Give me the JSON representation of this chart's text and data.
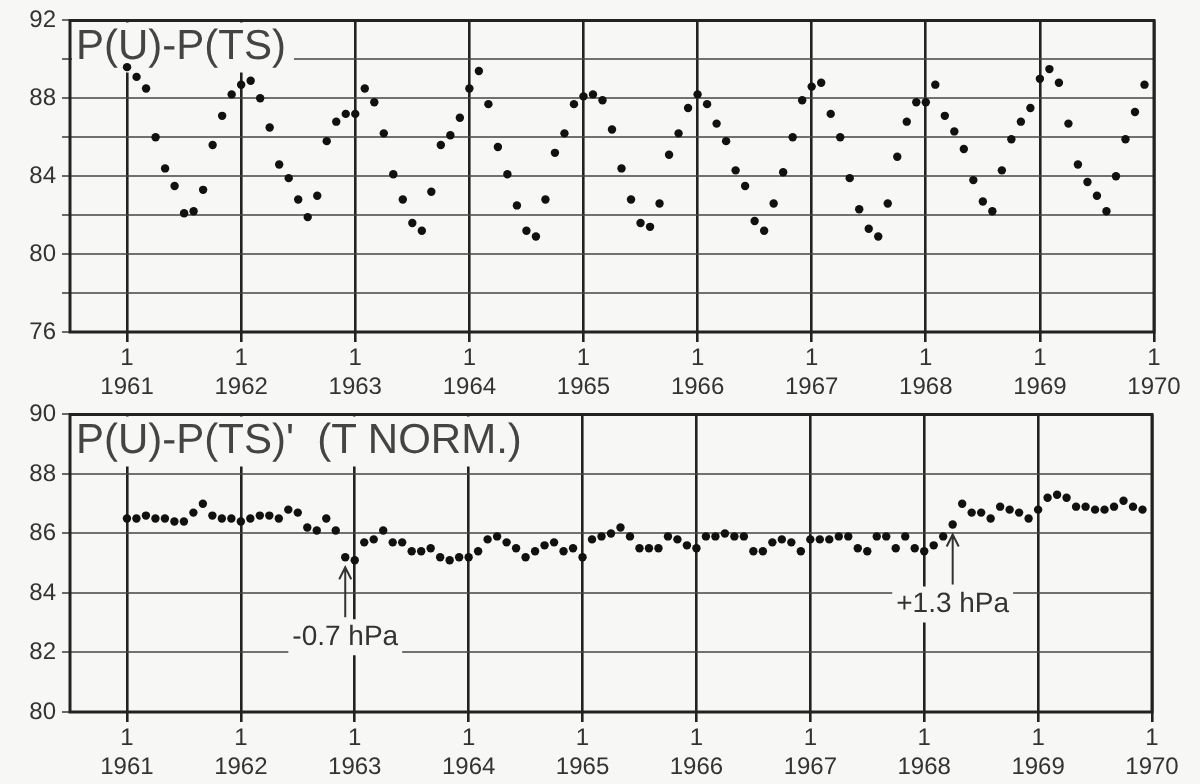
{
  "chart_data": [
    {
      "type": "scatter",
      "title": "P(U)-P(TS)",
      "marker": "circle",
      "grid": true,
      "legend": false,
      "xlim": [
        "1960-07",
        "1970-01"
      ],
      "xticks": [
        {
          "value": "1961-01",
          "label": "1\n1961"
        },
        {
          "value": "1962-01",
          "label": "1\n1962"
        },
        {
          "value": "1963-01",
          "label": "1\n1963"
        },
        {
          "value": "1964-01",
          "label": "1\n1964"
        },
        {
          "value": "1965-01",
          "label": "1\n1965"
        },
        {
          "value": "1966-01",
          "label": "1\n1966"
        },
        {
          "value": "1967-01",
          "label": "1\n1967"
        },
        {
          "value": "1968-01",
          "label": "1\n1968"
        },
        {
          "value": "1969-01",
          "label": "1\n1969"
        },
        {
          "value": "1970-01",
          "label": "1\n1970"
        }
      ],
      "ylim": [
        76,
        92
      ],
      "yticks": [
        76,
        {
          "value": 78,
          "label": null
        },
        80,
        {
          "value": 82,
          "label": null
        },
        84,
        {
          "value": 86,
          "label": null
        },
        88,
        {
          "value": 90,
          "label": null
        },
        92
      ],
      "x": [
        "1961-01",
        "1961-02",
        "1961-03",
        "1961-04",
        "1961-05",
        "1961-06",
        "1961-07",
        "1961-08",
        "1961-09",
        "1961-10",
        "1961-11",
        "1961-12",
        "1962-01",
        "1962-02",
        "1962-03",
        "1962-04",
        "1962-05",
        "1962-06",
        "1962-07",
        "1962-08",
        "1962-09",
        "1962-10",
        "1962-11",
        "1962-12",
        "1963-01",
        "1963-02",
        "1963-03",
        "1963-04",
        "1963-05",
        "1963-06",
        "1963-07",
        "1963-08",
        "1963-09",
        "1963-10",
        "1963-11",
        "1963-12",
        "1964-01",
        "1964-02",
        "1964-03",
        "1964-04",
        "1964-05",
        "1964-06",
        "1964-07",
        "1964-08",
        "1964-09",
        "1964-10",
        "1964-11",
        "1964-12",
        "1965-01",
        "1965-02",
        "1965-03",
        "1965-04",
        "1965-05",
        "1965-06",
        "1965-07",
        "1965-08",
        "1965-09",
        "1965-10",
        "1965-11",
        "1965-12",
        "1966-01",
        "1966-02",
        "1966-03",
        "1966-04",
        "1966-05",
        "1966-06",
        "1966-07",
        "1966-08",
        "1966-09",
        "1966-10",
        "1966-11",
        "1966-12",
        "1967-01",
        "1967-02",
        "1967-03",
        "1967-04",
        "1967-05",
        "1967-06",
        "1967-07",
        "1967-08",
        "1967-09",
        "1967-10",
        "1967-11",
        "1967-12",
        "1968-01",
        "1968-02",
        "1968-03",
        "1968-04",
        "1968-05",
        "1968-06",
        "1968-07",
        "1968-08",
        "1968-09",
        "1968-10",
        "1968-11",
        "1968-12",
        "1969-01",
        "1969-02",
        "1969-03",
        "1969-04",
        "1969-05",
        "1969-06",
        "1969-07",
        "1969-08",
        "1969-09",
        "1969-10",
        "1969-11",
        "1969-12"
      ],
      "series": [
        {
          "color": "#111111",
          "values": [
            89.6,
            89.1,
            88.5,
            86.0,
            84.4,
            83.5,
            82.1,
            82.2,
            83.3,
            85.6,
            87.1,
            88.2,
            88.7,
            88.9,
            88.0,
            86.5,
            84.6,
            83.9,
            82.8,
            81.9,
            83.0,
            85.8,
            86.8,
            87.2,
            87.2,
            88.5,
            87.8,
            86.2,
            84.1,
            82.8,
            81.6,
            81.2,
            83.2,
            85.6,
            86.1,
            87.0,
            88.5,
            89.4,
            87.7,
            85.5,
            84.1,
            82.5,
            81.2,
            80.9,
            82.8,
            85.2,
            86.2,
            87.7,
            88.1,
            88.2,
            87.9,
            86.4,
            84.4,
            82.8,
            81.6,
            81.4,
            82.6,
            85.1,
            86.2,
            87.5,
            88.2,
            87.7,
            86.7,
            85.8,
            84.3,
            83.5,
            81.7,
            81.2,
            82.6,
            84.2,
            86.0,
            87.9,
            88.6,
            88.8,
            87.2,
            86.0,
            83.9,
            82.3,
            81.3,
            80.9,
            82.6,
            85.0,
            86.8,
            87.8,
            87.8,
            88.7,
            87.1,
            86.3,
            85.4,
            83.8,
            82.7,
            82.2,
            84.3,
            85.9,
            86.8,
            87.5,
            89.0,
            89.5,
            88.8,
            86.7,
            84.6,
            83.7,
            83.0,
            82.2,
            84.0,
            85.9,
            87.3,
            88.7
          ]
        }
      ]
    },
    {
      "type": "scatter",
      "title": "P(U)-P(TS)'  (T NORM.)",
      "marker": "circle",
      "grid": true,
      "legend": false,
      "xlim": [
        "1960-07",
        "1970-01"
      ],
      "xticks": [
        {
          "value": "1961-01",
          "label": "1\n1961"
        },
        {
          "value": "1962-01",
          "label": "1\n1962"
        },
        {
          "value": "1963-01",
          "label": "1\n1963"
        },
        {
          "value": "1964-01",
          "label": "1\n1964"
        },
        {
          "value": "1965-01",
          "label": "1\n1965"
        },
        {
          "value": "1966-01",
          "label": "1\n1966"
        },
        {
          "value": "1967-01",
          "label": "1\n1967"
        },
        {
          "value": "1968-01",
          "label": "1\n1968"
        },
        {
          "value": "1969-01",
          "label": "1\n1969"
        },
        {
          "value": "1970-01",
          "label": "1\n1970"
        }
      ],
      "ylim": [
        80,
        90
      ],
      "yticks": [
        80,
        82,
        84,
        86,
        88,
        90
      ],
      "annotations": [
        {
          "text": "-0.7 hPa",
          "x": "1962-12",
          "y": 85.2
        },
        {
          "text": "+1.3 hPa",
          "x": "1968-04",
          "y": 86.3
        }
      ],
      "x": [
        "1961-01",
        "1961-02",
        "1961-03",
        "1961-04",
        "1961-05",
        "1961-06",
        "1961-07",
        "1961-08",
        "1961-09",
        "1961-10",
        "1961-11",
        "1961-12",
        "1962-01",
        "1962-02",
        "1962-03",
        "1962-04",
        "1962-05",
        "1962-06",
        "1962-07",
        "1962-08",
        "1962-09",
        "1962-10",
        "1962-11",
        "1962-12",
        "1963-01",
        "1963-02",
        "1963-03",
        "1963-04",
        "1963-05",
        "1963-06",
        "1963-07",
        "1963-08",
        "1963-09",
        "1963-10",
        "1963-11",
        "1963-12",
        "1964-01",
        "1964-02",
        "1964-03",
        "1964-04",
        "1964-05",
        "1964-06",
        "1964-07",
        "1964-08",
        "1964-09",
        "1964-10",
        "1964-11",
        "1964-12",
        "1965-01",
        "1965-02",
        "1965-03",
        "1965-04",
        "1965-05",
        "1965-06",
        "1965-07",
        "1965-08",
        "1965-09",
        "1965-10",
        "1965-11",
        "1965-12",
        "1966-01",
        "1966-02",
        "1966-03",
        "1966-04",
        "1966-05",
        "1966-06",
        "1966-07",
        "1966-08",
        "1966-09",
        "1966-10",
        "1966-11",
        "1966-12",
        "1967-01",
        "1967-02",
        "1967-03",
        "1967-04",
        "1967-05",
        "1967-06",
        "1967-07",
        "1967-08",
        "1967-09",
        "1967-10",
        "1967-11",
        "1967-12",
        "1968-01",
        "1968-02",
        "1968-03",
        "1968-04",
        "1968-05",
        "1968-06",
        "1968-07",
        "1968-08",
        "1968-09",
        "1968-10",
        "1968-11",
        "1968-12",
        "1969-01",
        "1969-02",
        "1969-03",
        "1969-04",
        "1969-05",
        "1969-06",
        "1969-07",
        "1969-08",
        "1969-09",
        "1969-10",
        "1969-11",
        "1969-12"
      ],
      "series": [
        {
          "color": "#111111",
          "values": [
            86.5,
            86.5,
            86.6,
            86.5,
            86.5,
            86.4,
            86.4,
            86.7,
            87.0,
            86.6,
            86.5,
            86.5,
            86.4,
            86.5,
            86.6,
            86.6,
            86.5,
            86.8,
            86.7,
            86.2,
            86.1,
            86.5,
            86.1,
            85.2,
            85.1,
            85.7,
            85.8,
            86.1,
            85.7,
            85.7,
            85.4,
            85.4,
            85.5,
            85.2,
            85.1,
            85.2,
            85.2,
            85.4,
            85.8,
            85.9,
            85.7,
            85.5,
            85.2,
            85.4,
            85.6,
            85.7,
            85.4,
            85.5,
            85.2,
            85.8,
            85.9,
            86.0,
            86.2,
            85.9,
            85.5,
            85.5,
            85.5,
            85.9,
            85.8,
            85.6,
            85.5,
            85.9,
            85.9,
            86.0,
            85.9,
            85.9,
            85.4,
            85.4,
            85.7,
            85.8,
            85.7,
            85.4,
            85.8,
            85.8,
            85.8,
            85.9,
            85.9,
            85.5,
            85.4,
            85.9,
            85.9,
            85.5,
            85.9,
            85.5,
            85.4,
            85.6,
            85.9,
            86.3,
            87.0,
            86.7,
            86.7,
            86.5,
            86.9,
            86.8,
            86.7,
            86.5,
            86.8,
            87.2,
            87.3,
            87.2,
            86.9,
            86.9,
            86.8,
            86.8,
            86.9,
            87.1,
            86.9,
            86.8
          ]
        }
      ]
    }
  ]
}
